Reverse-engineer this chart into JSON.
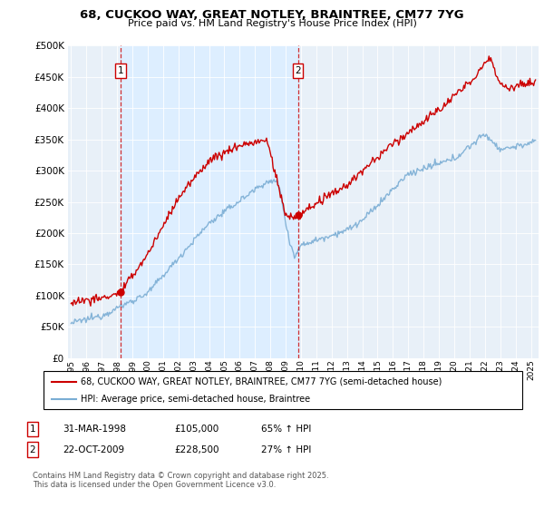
{
  "title": "68, CUCKOO WAY, GREAT NOTLEY, BRAINTREE, CM77 7YG",
  "subtitle": "Price paid vs. HM Land Registry's House Price Index (HPI)",
  "legend_line1": "68, CUCKOO WAY, GREAT NOTLEY, BRAINTREE, CM77 7YG (semi-detached house)",
  "legend_line2": "HPI: Average price, semi-detached house, Braintree",
  "footer": "Contains HM Land Registry data © Crown copyright and database right 2025.\nThis data is licensed under the Open Government Licence v3.0.",
  "annotation1_label": "1",
  "annotation1_date": "31-MAR-1998",
  "annotation1_price": "£105,000",
  "annotation1_hpi": "65% ↑ HPI",
  "annotation2_label": "2",
  "annotation2_date": "22-OCT-2009",
  "annotation2_price": "£228,500",
  "annotation2_hpi": "27% ↑ HPI",
  "red_color": "#cc0000",
  "blue_color": "#7aadd4",
  "highlight_color": "#ddeeff",
  "background_color": "#e8f0f8",
  "ylim": [
    0,
    500000
  ],
  "yticks": [
    0,
    50000,
    100000,
    150000,
    200000,
    250000,
    300000,
    350000,
    400000,
    450000,
    500000
  ],
  "sale1_x": 1998.24,
  "sale1_y": 105000,
  "sale2_x": 2009.8,
  "sale2_y": 228500,
  "xmin": 1995,
  "xmax": 2025
}
